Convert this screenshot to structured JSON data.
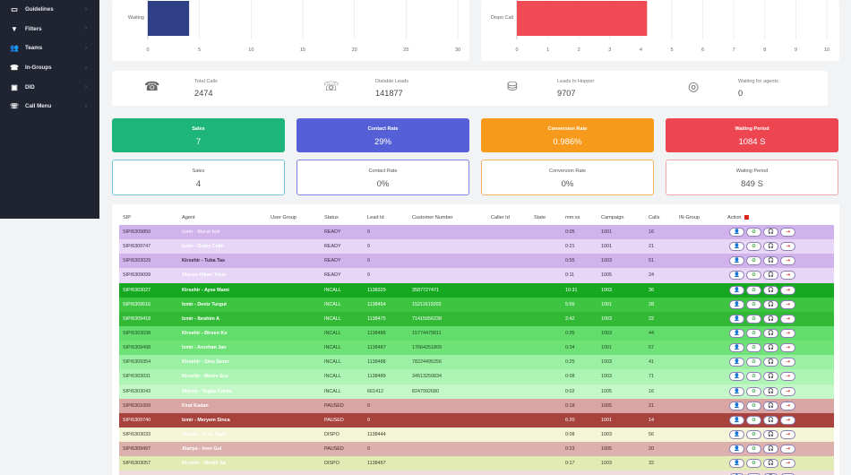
{
  "sidebar": {
    "items": [
      {
        "label": "Guidelines",
        "icon": "guidelines-icon"
      },
      {
        "label": "Filters",
        "icon": "filter-icon"
      },
      {
        "label": "Teams",
        "icon": "users-icon"
      },
      {
        "label": "In-Groups",
        "icon": "phone-icon"
      },
      {
        "label": "DID",
        "icon": "did-icon"
      },
      {
        "label": "Call Menu",
        "icon": "call-menu-icon"
      }
    ]
  },
  "charts": {
    "chart_data": [
      {
        "type": "bar",
        "orientation": "horizontal",
        "categories": [
          "Waiting"
        ],
        "values": [
          4
        ],
        "xlim": [
          0,
          30
        ],
        "xticks": [
          "0",
          "5",
          "10",
          "15",
          "20",
          "25",
          "30"
        ],
        "grid": true,
        "colors": [
          "#2f3f87"
        ]
      },
      {
        "type": "bar",
        "orientation": "horizontal",
        "categories": [
          "Dispo Call"
        ],
        "values": [
          4.2
        ],
        "xlim": [
          0,
          10
        ],
        "xticks": [
          "0",
          "1",
          "2",
          "3",
          "4",
          "5",
          "6",
          "7",
          "8",
          "9",
          "10"
        ],
        "grid": true,
        "colors": [
          "#f04a55"
        ]
      }
    ]
  },
  "stats": [
    {
      "label": "Total Calls",
      "value": "2474",
      "icon": "phone-icon"
    },
    {
      "label": "Dialable Leads",
      "value": "141877",
      "icon": "phone-outgoing-icon"
    },
    {
      "label": "Leads In Hopper",
      "value": "9707",
      "icon": "database-icon"
    },
    {
      "label": "Waiting for agents",
      "value": "0",
      "icon": "headset-icon"
    }
  ],
  "kpi_top": [
    {
      "label": "Sales",
      "value": "7",
      "color": "#1db57a"
    },
    {
      "label": "Contact Rate",
      "value": "29%",
      "color": "#5560d6"
    },
    {
      "label": "Conversion Rate",
      "value": "0.986%",
      "color": "#f79a1b"
    },
    {
      "label": "Waiting Period",
      "value": "1084 S",
      "color": "#ee4650"
    }
  ],
  "kpi_bottom": [
    {
      "label": "Sales",
      "value": "4",
      "color": "#74c6df"
    },
    {
      "label": "Contact Rate",
      "value": "0%",
      "color": "#7c86e0"
    },
    {
      "label": "Conversion Rate",
      "value": "0%",
      "color": "#f2b15e"
    },
    {
      "label": "Waiting Period",
      "value": "849 S",
      "color": "#f2a6ab"
    }
  ],
  "table": {
    "headers": [
      "SIP",
      "Agent",
      "User Group",
      "Status",
      "Lead Id",
      "Customer Number",
      "Caller Id",
      "State",
      "mm:ss",
      "Campaign",
      "Calls",
      "IN-Group",
      "Action"
    ],
    "action_buttons": [
      "👤",
      "♻",
      "🎧",
      "⇥"
    ],
    "rows": [
      {
        "sip": "SIP/6309850",
        "agent": "Izmir - Murat Isik",
        "group": "",
        "status": "READY",
        "lead": "0",
        "customer": "",
        "caller": "",
        "state": "",
        "time": "0:05",
        "campaign": "1001",
        "calls": "16",
        "ingroup": "",
        "bg": "#d0b3ea",
        "fg": "#3a2b4a",
        "agentFg": "#f3ebfb"
      },
      {
        "sip": "SIP/6309747",
        "agent": "Izmir - Gulay Cakir",
        "group": "",
        "status": "READY",
        "lead": "0",
        "customer": "",
        "caller": "",
        "state": "",
        "time": "0:21",
        "campaign": "1001",
        "calls": "21",
        "ingroup": "",
        "bg": "#e7d6f6",
        "fg": "#3a2b4a",
        "agentFg": "#ffffff"
      },
      {
        "sip": "SIP/6303029",
        "agent": "Kirsehir - Tuba Tas",
        "group": "",
        "status": "READY",
        "lead": "0",
        "customer": "",
        "caller": "",
        "state": "",
        "time": "0:55",
        "campaign": "1003",
        "calls": "51",
        "ingroup": "",
        "bg": "#d0b3ea",
        "fg": "#3a2b4a",
        "agentFg": "#3a2b4a"
      },
      {
        "sip": "SIP/6309099",
        "agent": "Alanya-Hikan Tekin",
        "group": "",
        "status": "READY",
        "lead": "0",
        "customer": "",
        "caller": "",
        "state": "",
        "time": "0:11",
        "campaign": "1005",
        "calls": "24",
        "ingroup": "",
        "bg": "#e7d6f6",
        "fg": "#3a2b4a",
        "agentFg": "#ffffff"
      },
      {
        "sip": "SIP/6303027",
        "agent": "Kirsehir - Ayse Mami",
        "group": "",
        "status": "INCALL",
        "lead": "1138329",
        "customer": "3587727471",
        "caller": "",
        "state": "",
        "time": "10:31",
        "campaign": "1003",
        "calls": "36",
        "ingroup": "",
        "bg": "#15a820",
        "fg": "#ffffff",
        "agentFg": "#ffffff"
      },
      {
        "sip": "SIP/6309516",
        "agent": "Izmir - Deniz Turgut",
        "group": "",
        "status": "INCALL",
        "lead": "1138454",
        "customer": "15211619202",
        "caller": "",
        "state": "",
        "time": "5:56",
        "campaign": "1001",
        "calls": "28",
        "ingroup": "",
        "bg": "#3dc440",
        "fg": "#ffffff",
        "agentFg": "#ffffff"
      },
      {
        "sip": "SIP/6309418",
        "agent": "Izmir - Ibrahim A",
        "group": "",
        "status": "INCALL",
        "lead": "1138475",
        "customer": "71415056238",
        "caller": "",
        "state": "",
        "time": "2:42",
        "campaign": "1003",
        "calls": "22",
        "ingroup": "",
        "bg": "#32b936",
        "fg": "#ffffff",
        "agentFg": "#ffffff"
      },
      {
        "sip": "SIP/6303038",
        "agent": "Kirsehir - Birsen Ko",
        "group": "",
        "status": "INCALL",
        "lead": "1138486",
        "customer": "15774479811",
        "caller": "",
        "state": "",
        "time": "0:35",
        "campaign": "1003",
        "calls": "44",
        "ingroup": "",
        "bg": "#62dc6a",
        "fg": "#1f4a22",
        "agentFg": "#ffffff"
      },
      {
        "sip": "SIP/6309498",
        "agent": "Izmir - Aruzhan Jan",
        "group": "",
        "status": "INCALL",
        "lead": "1138487",
        "customer": "17664251809",
        "caller": "",
        "state": "",
        "time": "0:34",
        "campaign": "1001",
        "calls": "57",
        "ingroup": "",
        "bg": "#6ee277",
        "fg": "#1f4a22",
        "agentFg": "#ffffff"
      },
      {
        "sip": "SIP/6309354",
        "agent": "Kirsehir - Sinu Sezer",
        "group": "",
        "status": "INCALL",
        "lead": "1138488",
        "customer": "78224495256",
        "caller": "",
        "state": "",
        "time": "0:25",
        "campaign": "1003",
        "calls": "41",
        "ingroup": "",
        "bg": "#9cf0a4",
        "fg": "#274a2a",
        "agentFg": "#ffffff"
      },
      {
        "sip": "SIP/6303031",
        "agent": "Kirsehir - Merve Ece",
        "group": "",
        "status": "INCALL",
        "lead": "1138489",
        "customer": "34513259834",
        "caller": "",
        "state": "",
        "time": "0:08",
        "campaign": "1003",
        "calls": "71",
        "ingroup": "",
        "bg": "#aef4b4",
        "fg": "#274a2a",
        "agentFg": "#ffffff"
      },
      {
        "sip": "SIP/6303043",
        "agent": "Alanya - Tugba Kurda",
        "group": "",
        "status": "INCALL",
        "lead": "661412",
        "customer": "8247992680",
        "caller": "",
        "state": "",
        "time": "0:02",
        "campaign": "1005",
        "calls": "16",
        "ingroup": "",
        "bg": "#c4f8c8",
        "fg": "#274a2a",
        "agentFg": "#ffffff"
      },
      {
        "sip": "SIP/6301009",
        "agent": "Firat Kadan",
        "group": "",
        "status": "PAUSED",
        "lead": "0",
        "customer": "",
        "caller": "",
        "state": "",
        "time": "0:18",
        "campaign": "1005",
        "calls": "21",
        "ingroup": "",
        "bg": "#d9a5a2",
        "fg": "#4a2826",
        "agentFg": "#ffffff"
      },
      {
        "sip": "SIP/6309740",
        "agent": "Izmir - Meryem Sinca",
        "group": "",
        "status": "PAUSED",
        "lead": "0",
        "customer": "",
        "caller": "",
        "state": "",
        "time": "6:20",
        "campaign": "1001",
        "calls": "14",
        "ingroup": "",
        "bg": "#a8423c",
        "fg": "#ffffff",
        "agentFg": "#ffffff"
      },
      {
        "sip": "SIP/6303033",
        "agent": "Alanya - Ayse Yagli",
        "group": "",
        "status": "DISPO",
        "lead": "1138444",
        "customer": "",
        "caller": "",
        "state": "",
        "time": "0:08",
        "campaign": "1003",
        "calls": "56",
        "ingroup": "",
        "bg": "#f3f5d6",
        "fg": "#3a3a2a",
        "agentFg": "#ffffff"
      },
      {
        "sip": "SIP/6309497",
        "agent": "Alanya - Irem Gul",
        "group": "",
        "status": "PAUSED",
        "lead": "0",
        "customer": "",
        "caller": "",
        "state": "",
        "time": "0:23",
        "campaign": "1005",
        "calls": "20",
        "ingroup": "",
        "bg": "#dcb0ac",
        "fg": "#4a2826",
        "agentFg": "#ffffff"
      },
      {
        "sip": "SIP/6303057",
        "agent": "Kirsehir - Medih Sa",
        "group": "",
        "status": "DISPO",
        "lead": "1138457",
        "customer": "",
        "caller": "",
        "state": "",
        "time": "0:17",
        "campaign": "1003",
        "calls": "32",
        "ingroup": "",
        "bg": "#e2ebb4",
        "fg": "#3a3a2a",
        "agentFg": "#ffffff"
      },
      {
        "sip": "SIP/6309474",
        "agent": "",
        "group": "",
        "status": "PAUSED",
        "lead": "",
        "customer": "",
        "caller": "",
        "state": "",
        "time": "",
        "campaign": "",
        "calls": "",
        "ingroup": "",
        "bg": "#f0dcdc",
        "fg": "#4a2826",
        "agentFg": "#ffffff"
      }
    ]
  }
}
